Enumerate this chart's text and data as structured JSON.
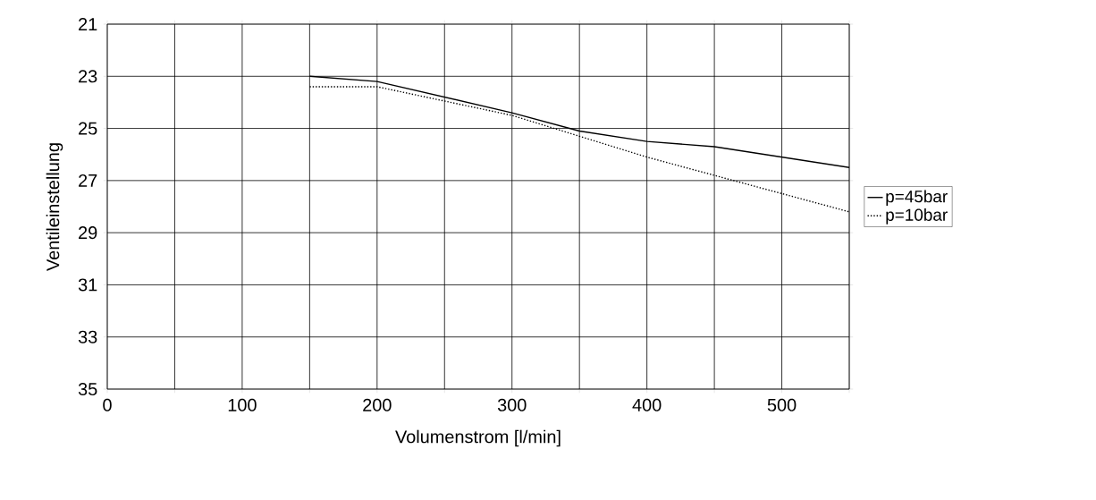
{
  "chart_data": {
    "type": "line",
    "xlabel": "Volumenstrom [l/min]",
    "ylabel": "Ventileinstellung",
    "xlim": [
      0,
      550
    ],
    "ylim": [
      35,
      21
    ],
    "xticks": [
      0,
      {
        "value": 50,
        "label": null
      },
      100,
      {
        "value": 150,
        "label": null
      },
      200,
      {
        "value": 250,
        "label": null
      },
      300,
      {
        "value": 350,
        "label": null
      },
      400,
      {
        "value": 450,
        "label": null
      },
      500,
      {
        "value": 550,
        "label": null
      }
    ],
    "yticks": [
      21,
      23,
      25,
      27,
      29,
      31,
      33,
      35
    ],
    "grid": true,
    "legend": "right",
    "marker": "none",
    "series": [
      {
        "name": "p=45bar",
        "color": "#000000",
        "line_style": "solid",
        "x": [
          150,
          200,
          300,
          350,
          400,
          450,
          550
        ],
        "values": [
          23.0,
          23.2,
          24.4,
          25.1,
          25.5,
          25.7,
          26.5
        ]
      },
      {
        "name": "p=10bar",
        "color": "#000000",
        "line_style": "dotted",
        "x": [
          150,
          200,
          300,
          350,
          400,
          450,
          500,
          550
        ],
        "values": [
          23.4,
          23.4,
          24.5,
          25.3,
          26.1,
          26.8,
          27.5,
          28.2
        ]
      }
    ]
  }
}
